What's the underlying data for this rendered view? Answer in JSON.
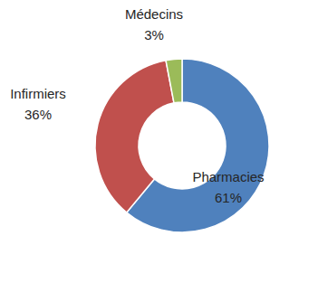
{
  "chart_data": {
    "type": "donut",
    "categories": [
      "Pharmacies",
      "Infirmiers",
      "Médecins"
    ],
    "values": [
      61,
      36,
      3
    ],
    "value_labels": [
      "61%",
      "36%",
      "3%"
    ],
    "colors": [
      "#4f81bd",
      "#c0504d",
      "#9bbb59"
    ],
    "data_labels": true
  }
}
